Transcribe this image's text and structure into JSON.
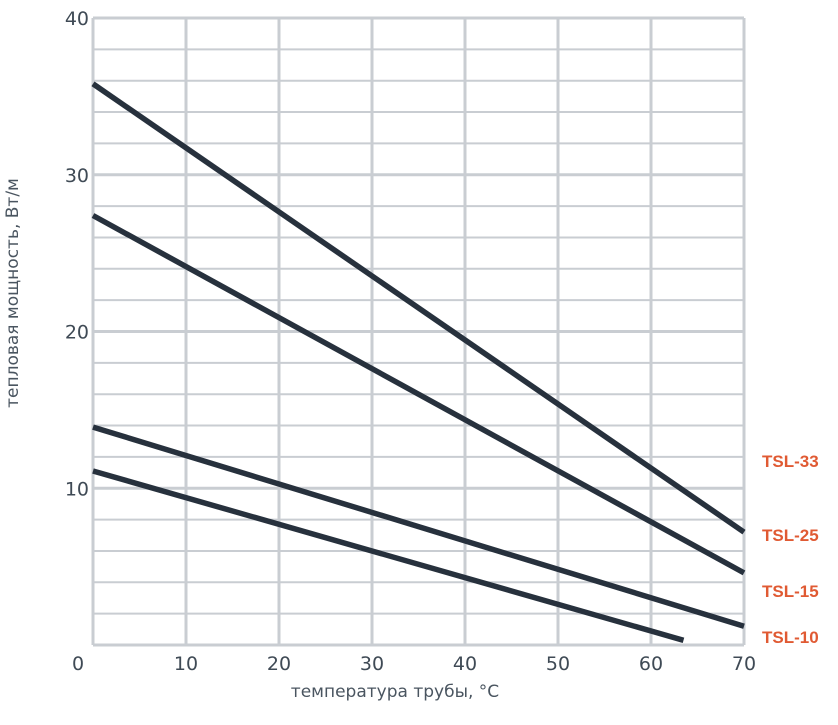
{
  "chart_data": {
    "type": "line",
    "xlabel": "температура трубы, °С",
    "ylabel": "тепловая мощность, Вт/м",
    "xlim": [
      0,
      70
    ],
    "ylim": [
      0,
      40
    ],
    "x_ticks": [
      "0",
      "10",
      "20",
      "30",
      "40",
      "50",
      "60",
      "70"
    ],
    "y_ticks": [
      "10",
      "20",
      "30",
      "40"
    ],
    "grid": true,
    "legend": "right",
    "colors": {
      "line": "#27313d",
      "grid": "#c9cdd2",
      "label": "#e05a33",
      "axis": "#3f4a55"
    },
    "series": [
      {
        "name": "TSL-33",
        "points": [
          [
            0,
            35.8
          ],
          [
            70,
            7.2
          ]
        ]
      },
      {
        "name": "TSL-25",
        "points": [
          [
            0,
            27.4
          ],
          [
            70,
            4.6
          ]
        ]
      },
      {
        "name": "TSL-15",
        "points": [
          [
            0,
            13.9
          ],
          [
            70,
            1.2
          ]
        ]
      },
      {
        "name": "TSL-10",
        "points": [
          [
            0,
            11.1
          ],
          [
            63.5,
            0.3
          ]
        ]
      }
    ]
  }
}
